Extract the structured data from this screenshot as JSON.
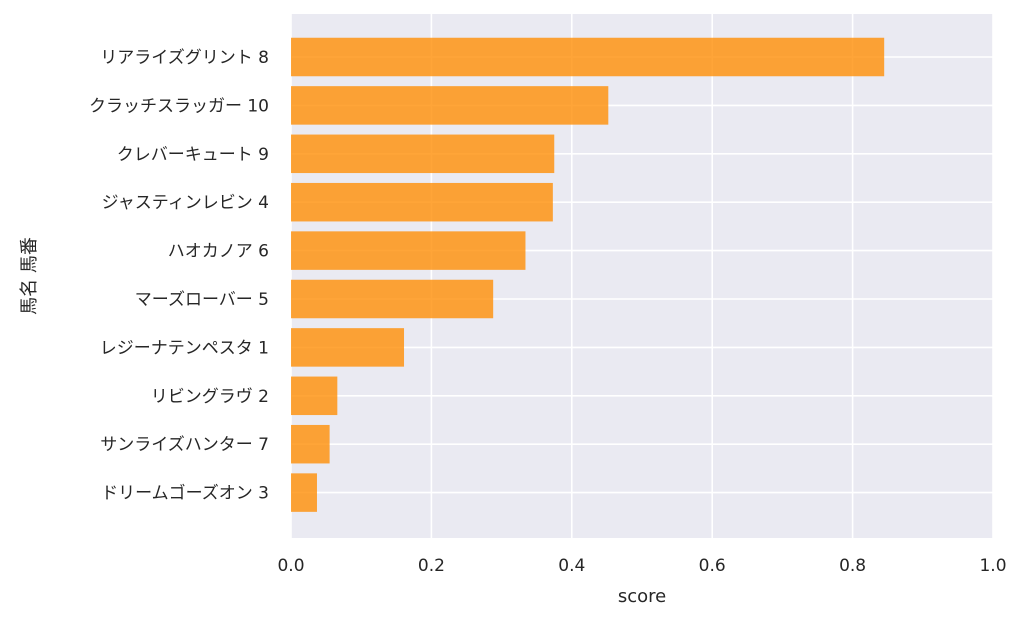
{
  "chart_data": {
    "type": "bar",
    "orientation": "horizontal",
    "categories": [
      "リアライズグリント 8",
      "クラッチスラッガー 10",
      "クレバーキュート 9",
      "ジャスティンレビン 4",
      "ハオカノア 6",
      "マーズローバー 5",
      "レジーナテンペスタ 1",
      "リビングラヴ 2",
      "サンライズハンター 7",
      "ドリームゴーズオン 3"
    ],
    "values": [
      0.845,
      0.452,
      0.375,
      0.373,
      0.334,
      0.288,
      0.161,
      0.066,
      0.055,
      0.037
    ],
    "xlabel": "score",
    "ylabel": "馬名 馬番",
    "xlim": [
      0.0,
      1.0
    ],
    "xticks": [
      "0.0",
      "0.2",
      "0.4",
      "0.6",
      "0.8",
      "1.0"
    ],
    "grid": true,
    "bar_color": "#ff8c00",
    "background_color": "#eaeaf2",
    "grid_color": "#ffffff"
  }
}
